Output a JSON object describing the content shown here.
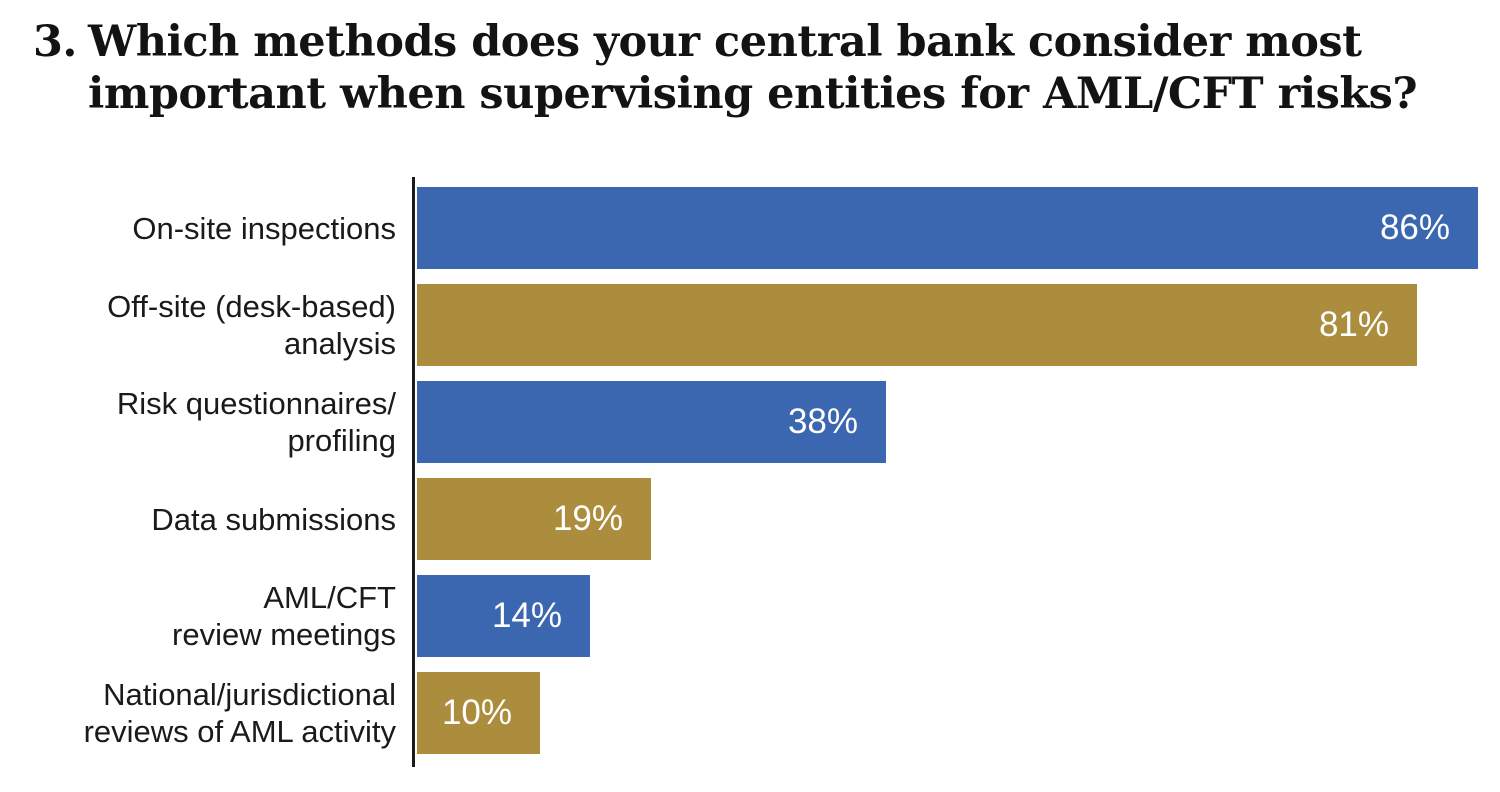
{
  "title": {
    "number": "3.",
    "line1": "Which methods does your central bank consider most",
    "line2": "important when supervising entities for AML/CFT risks?"
  },
  "colors": {
    "blue": "#3b67b0",
    "gold": "#ac8d3e",
    "axis": "#1a1a1a",
    "background": "#ffffff",
    "value_text": "#ffffff",
    "label_text": "#1a1a1a"
  },
  "chart_data": {
    "type": "bar",
    "orientation": "horizontal",
    "title": "3. Which methods does your central bank consider most important when supervising entities for AML/CFT risks?",
    "categories": [
      "On-site inspections",
      "Off-site (desk-based) analysis",
      "Risk questionnaires/profiling",
      "Data submissions",
      "AML/CFT review meetings",
      "National/jurisdictional reviews of AML activity"
    ],
    "category_label_lines": [
      [
        "On-site inspections"
      ],
      [
        "Off-site (desk-based)",
        "analysis"
      ],
      [
        "Risk questionnaires/",
        "profiling"
      ],
      [
        "Data submissions"
      ],
      [
        "AML/CFT",
        "review meetings"
      ],
      [
        "National/jurisdictional",
        "reviews of AML activity"
      ]
    ],
    "values": [
      86,
      81,
      38,
      19,
      14,
      10
    ],
    "value_labels": [
      "86%",
      "81%",
      "38%",
      "19%",
      "14%",
      "10%"
    ],
    "bar_colors": [
      "blue",
      "gold",
      "blue",
      "gold",
      "blue",
      "gold"
    ],
    "xlim": [
      0,
      100
    ],
    "xlabel": "",
    "ylabel": "",
    "grid": false,
    "legend": false,
    "value_label_position": "inside-right"
  }
}
